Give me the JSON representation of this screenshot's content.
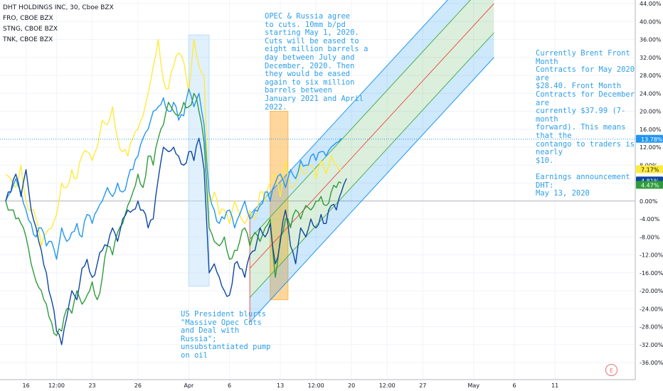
{
  "legend": {
    "title": "DHT HOLDINGS INC, 30, Cboe BZX",
    "rows": [
      "FRO, CBOE BZX",
      "STNG, CBOE BZX",
      "TNK, CBOE BZX"
    ]
  },
  "annotations": {
    "opec": "OPEC & Russia agree\nto cuts. 10mm b/pd\nstarting May 1, 2020.\nCuts will be eased to\neight million barrels a\nday between July and\nDecember, 2020. Then\nthey would be eased\nagain to six million\nbarrels between\nJanuary 2021 and April\n2022.",
    "brent": "Currently Brent Front Month\nContracts for May 2020 are\n$28.40. Front Month\nContracts for December are\ncurrently $37.99 (7-month\nforward). This means that the\ncontango to traders is nearly\n$10.\n\nEarnings announcement DHT:\nMay 13, 2020",
    "us": "US President blurts\n\"Massive Opec Cuts\nand Deal with\nRussia\";\nunsubstantiated pump\non oil"
  },
  "earnings_marker": "E",
  "colors": {
    "dht": "#0d47a1",
    "fro": "#ffeb3b",
    "stng": "#2e9c3a",
    "tnk": "#2196f3",
    "channel_blue": "#2196f3",
    "channel_green": "#4caf50",
    "channel_median": "#ef5350",
    "highlight_blue": "#bbdefb",
    "highlight_orange": "#ffb74d",
    "price_line": "#2196f3"
  },
  "chart_data": {
    "type": "line",
    "symbol": "DHT HOLDINGS INC, 30, Cboe BZX",
    "ylim": [
      -38,
      44
    ],
    "y_unit": "%",
    "y_ticks": [
      "44.00%",
      "40.00%",
      "36.00%",
      "32.00%",
      "28.00%",
      "24.00%",
      "20.00%",
      "16.00%",
      "12.00%",
      "8.00%",
      "4.00%",
      "0.00%",
      "-4.00%",
      "-8.00%",
      "-12.00%",
      "-16.00%",
      "-20.00%",
      "-24.00%",
      "-28.00%",
      "-32.00%",
      "-36.00%"
    ],
    "y_tick_values": [
      44,
      40,
      36,
      32,
      28,
      24,
      20,
      16,
      12,
      8,
      4,
      0,
      -4,
      -8,
      -12,
      -16,
      -20,
      -24,
      -28,
      -32,
      -36
    ],
    "x_ticks": [
      "16",
      "12:00",
      "23",
      "26",
      "Apr",
      "6",
      "13",
      "12:00",
      "20",
      "12:00",
      "27",
      "May",
      "6",
      "11"
    ],
    "x_tick_index": [
      4,
      10,
      17,
      26,
      36,
      44,
      54,
      61,
      68,
      75,
      82,
      92,
      100,
      108
    ],
    "x_max_index": 118,
    "series": [
      {
        "name": "DHT",
        "color": "#0d47a1",
        "last_label": "4.81%",
        "points": [
          [
            0,
            0
          ],
          [
            1,
            2
          ],
          [
            2,
            6
          ],
          [
            3,
            1
          ],
          [
            4,
            7
          ],
          [
            5,
            -2
          ],
          [
            6,
            -6
          ],
          [
            7,
            -11
          ],
          [
            8,
            -16
          ],
          [
            9,
            -22
          ],
          [
            10,
            -29
          ],
          [
            11,
            -32
          ],
          [
            12,
            -26
          ],
          [
            13,
            -20
          ],
          [
            14,
            -22
          ],
          [
            15,
            -15
          ],
          [
            16,
            -13
          ],
          [
            17,
            -17
          ],
          [
            18,
            -14
          ],
          [
            19,
            -11
          ],
          [
            20,
            -10
          ],
          [
            21,
            -6
          ],
          [
            22,
            -9
          ],
          [
            23,
            -4
          ],
          [
            24,
            -2
          ],
          [
            25,
            -2
          ],
          [
            26,
            0
          ],
          [
            27,
            -2
          ],
          [
            28,
            -6
          ],
          [
            29,
            -4
          ],
          [
            30,
            5
          ],
          [
            31,
            12
          ],
          [
            32,
            11
          ],
          [
            33,
            12
          ],
          [
            34,
            10
          ],
          [
            35,
            8
          ],
          [
            36,
            11
          ],
          [
            37,
            9
          ],
          [
            38,
            14
          ],
          [
            39,
            7
          ],
          [
            40,
            -16
          ],
          [
            41,
            -14
          ],
          [
            42,
            -17
          ],
          [
            43,
            -20
          ],
          [
            44,
            -21
          ],
          [
            45,
            -14
          ],
          [
            46,
            -15
          ],
          [
            47,
            -17
          ],
          [
            48,
            -12
          ],
          [
            49,
            -11
          ],
          [
            50,
            -6
          ],
          [
            51,
            -8
          ],
          [
            52,
            -5
          ],
          [
            53,
            -14
          ],
          [
            54,
            -9
          ],
          [
            55,
            -2
          ],
          [
            56,
            -10
          ],
          [
            57,
            -14
          ],
          [
            58,
            -6
          ],
          [
            59,
            -8
          ],
          [
            60,
            -4
          ],
          [
            61,
            -6
          ],
          [
            62,
            -3
          ],
          [
            63,
            -5
          ],
          [
            64,
            -1
          ],
          [
            65,
            -2
          ],
          [
            66,
            2
          ],
          [
            67,
            5
          ]
        ]
      },
      {
        "name": "FRO",
        "color": "#ffeb3b",
        "last_label": "7.17%",
        "points": [
          [
            0,
            6
          ],
          [
            1,
            5
          ],
          [
            2,
            3
          ],
          [
            3,
            8
          ],
          [
            4,
            0
          ],
          [
            5,
            -2
          ],
          [
            6,
            -4
          ],
          [
            7,
            -10
          ],
          [
            8,
            -7
          ],
          [
            9,
            -6
          ],
          [
            10,
            -3
          ],
          [
            11,
            4
          ],
          [
            12,
            3
          ],
          [
            13,
            7
          ],
          [
            14,
            5
          ],
          [
            15,
            10
          ],
          [
            16,
            11
          ],
          [
            17,
            9
          ],
          [
            18,
            12
          ],
          [
            19,
            18
          ],
          [
            20,
            17
          ],
          [
            21,
            21
          ],
          [
            22,
            14
          ],
          [
            23,
            11
          ],
          [
            24,
            10
          ],
          [
            25,
            14
          ],
          [
            26,
            16
          ],
          [
            27,
            19
          ],
          [
            28,
            24
          ],
          [
            29,
            30
          ],
          [
            30,
            36
          ],
          [
            31,
            27
          ],
          [
            32,
            25
          ],
          [
            33,
            30
          ],
          [
            34,
            33
          ],
          [
            35,
            31
          ],
          [
            36,
            24
          ],
          [
            37,
            36
          ],
          [
            38,
            30
          ],
          [
            39,
            28
          ],
          [
            40,
            0
          ],
          [
            41,
            2
          ],
          [
            42,
            -3
          ],
          [
            43,
            -2
          ],
          [
            44,
            -5
          ],
          [
            45,
            0
          ],
          [
            46,
            -3
          ],
          [
            47,
            -5
          ],
          [
            48,
            -2
          ],
          [
            49,
            -4
          ],
          [
            50,
            2
          ],
          [
            51,
            0
          ],
          [
            52,
            4
          ],
          [
            53,
            6
          ],
          [
            54,
            1
          ],
          [
            55,
            9
          ],
          [
            56,
            3
          ],
          [
            57,
            4
          ],
          [
            58,
            8
          ],
          [
            59,
            6
          ],
          [
            60,
            8
          ],
          [
            61,
            5
          ],
          [
            62,
            9
          ],
          [
            63,
            6
          ],
          [
            64,
            10
          ],
          [
            65,
            8
          ],
          [
            66,
            7
          ]
        ]
      },
      {
        "name": "STNG",
        "color": "#2e9c3a",
        "last_label": "4.47%",
        "points": [
          [
            0,
            0
          ],
          [
            1,
            -2
          ],
          [
            2,
            -4
          ],
          [
            3,
            -5
          ],
          [
            4,
            -8
          ],
          [
            5,
            -14
          ],
          [
            6,
            -18
          ],
          [
            7,
            -20
          ],
          [
            8,
            -23
          ],
          [
            9,
            -27
          ],
          [
            10,
            -30
          ],
          [
            11,
            -29
          ],
          [
            12,
            -24
          ],
          [
            13,
            -25
          ],
          [
            14,
            -20
          ],
          [
            15,
            -23
          ],
          [
            16,
            -21
          ],
          [
            17,
            -18
          ],
          [
            18,
            -22
          ],
          [
            19,
            -17
          ],
          [
            20,
            -10
          ],
          [
            21,
            -12
          ],
          [
            22,
            -7
          ],
          [
            23,
            -5
          ],
          [
            24,
            -1
          ],
          [
            25,
            2
          ],
          [
            26,
            6
          ],
          [
            27,
            3
          ],
          [
            28,
            10
          ],
          [
            29,
            8
          ],
          [
            30,
            14
          ],
          [
            31,
            17
          ],
          [
            32,
            22
          ],
          [
            33,
            20
          ],
          [
            34,
            19
          ],
          [
            35,
            22
          ],
          [
            36,
            21
          ],
          [
            37,
            24
          ],
          [
            38,
            20
          ],
          [
            39,
            13
          ],
          [
            40,
            -6
          ],
          [
            41,
            -9
          ],
          [
            42,
            -10
          ],
          [
            43,
            -8
          ],
          [
            44,
            -13
          ],
          [
            45,
            -11
          ],
          [
            46,
            -9
          ],
          [
            47,
            -6
          ],
          [
            48,
            -10
          ],
          [
            49,
            -7
          ],
          [
            50,
            -9
          ],
          [
            51,
            -6
          ],
          [
            52,
            -4
          ],
          [
            53,
            -17
          ],
          [
            54,
            -8
          ],
          [
            55,
            -4
          ],
          [
            56,
            -6
          ],
          [
            57,
            -2
          ],
          [
            58,
            -4
          ],
          [
            59,
            -1
          ],
          [
            60,
            -2
          ],
          [
            61,
            0
          ],
          [
            62,
            1
          ],
          [
            63,
            -1
          ],
          [
            64,
            2
          ],
          [
            65,
            3
          ],
          [
            66,
            4
          ]
        ]
      },
      {
        "name": "TNK",
        "color": "#2196f3",
        "last_label": "13.78%",
        "points": [
          [
            0,
            0
          ],
          [
            1,
            2
          ],
          [
            2,
            5
          ],
          [
            3,
            2
          ],
          [
            4,
            -2
          ],
          [
            5,
            -5
          ],
          [
            6,
            -8
          ],
          [
            7,
            -6
          ],
          [
            8,
            -10
          ],
          [
            9,
            -9
          ],
          [
            10,
            -13
          ],
          [
            11,
            -6
          ],
          [
            12,
            -9
          ],
          [
            13,
            -7
          ],
          [
            14,
            -5
          ],
          [
            15,
            -8
          ],
          [
            16,
            -3
          ],
          [
            17,
            -5
          ],
          [
            18,
            -2
          ],
          [
            19,
            0
          ],
          [
            20,
            3
          ],
          [
            21,
            1
          ],
          [
            22,
            4
          ],
          [
            23,
            2
          ],
          [
            24,
            5
          ],
          [
            25,
            7
          ],
          [
            26,
            10
          ],
          [
            27,
            14
          ],
          [
            28,
            16
          ],
          [
            29,
            20
          ],
          [
            30,
            21
          ],
          [
            31,
            23
          ],
          [
            32,
            20
          ],
          [
            33,
            22
          ],
          [
            34,
            18
          ],
          [
            35,
            19
          ],
          [
            36,
            25
          ],
          [
            37,
            21
          ],
          [
            38,
            24
          ],
          [
            39,
            17
          ],
          [
            40,
            2
          ],
          [
            41,
            -2
          ],
          [
            42,
            -5
          ],
          [
            43,
            -4
          ],
          [
            44,
            -2
          ],
          [
            45,
            -6
          ],
          [
            46,
            -3
          ],
          [
            47,
            0
          ],
          [
            48,
            -4
          ],
          [
            49,
            -2
          ],
          [
            50,
            -1
          ],
          [
            51,
            2
          ],
          [
            52,
            0
          ],
          [
            53,
            4
          ],
          [
            54,
            6
          ],
          [
            55,
            3
          ],
          [
            56,
            7
          ],
          [
            57,
            5
          ],
          [
            58,
            9
          ],
          [
            59,
            8
          ],
          [
            60,
            10
          ],
          [
            61,
            9
          ],
          [
            62,
            11
          ],
          [
            63,
            10
          ],
          [
            64,
            12
          ],
          [
            65,
            13
          ],
          [
            66,
            14
          ]
        ]
      }
    ],
    "price_line": {
      "value": 13.78,
      "label": "13.78%"
    },
    "highlights": [
      {
        "name": "march-rally",
        "x": [
          36,
          40
        ],
        "y": [
          -19,
          37
        ],
        "color": "blue"
      },
      {
        "name": "opec-deal",
        "x": [
          52,
          55.5
        ],
        "y": [
          -22,
          20
        ],
        "color": "orange"
      }
    ],
    "channel": {
      "median": [
        [
          48,
          -15
        ],
        [
          96,
          44
        ]
      ],
      "inner_offset": 6.5,
      "outer_offset": 12,
      "start": 48
    }
  }
}
